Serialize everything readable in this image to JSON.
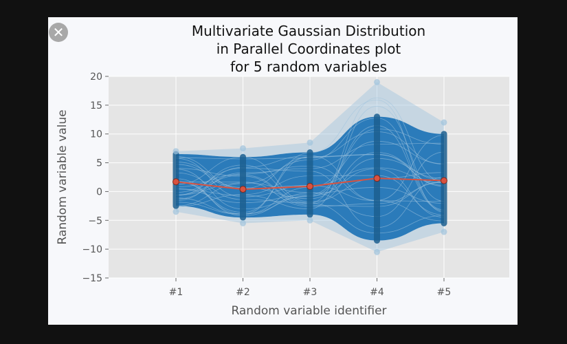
{
  "viewer": {
    "close_glyph": "✕"
  },
  "chart_data": {
    "type": "line",
    "title": "Multivariate Gaussian Distribution\nin Parallel Coordinates plot\nfor 5 random variables",
    "xlabel": "Random variable identifier",
    "ylabel": "Random variable value",
    "categories": [
      "#1",
      "#2",
      "#3",
      "#4",
      "#5"
    ],
    "ylim": [
      -15,
      20
    ],
    "yticks": [
      -15,
      -10,
      -5,
      0,
      5,
      10,
      15,
      20
    ],
    "ytick_labels": [
      "−15",
      "−10",
      "−5",
      "0",
      "5",
      "10",
      "15",
      "20"
    ],
    "grid": true,
    "series": [
      {
        "role": "samples-band",
        "color": "#2b7bba",
        "lower": [
          -3.5,
          -5.5,
          -5.0,
          -10.5,
          -7.0
        ],
        "upper": [
          7.0,
          7.5,
          8.5,
          19.0,
          12.0
        ],
        "dense_lower": [
          -2.5,
          -4.5,
          -4.0,
          -8.5,
          -5.5
        ],
        "dense_upper": [
          6.5,
          6.0,
          6.8,
          13.0,
          10.0
        ]
      },
      {
        "role": "mean",
        "color": "#d9523f",
        "values": [
          1.7,
          0.4,
          0.9,
          2.3,
          1.9
        ]
      }
    ],
    "colors": {
      "plot_bg": "#e5e5e5",
      "grid": "#ffffff",
      "band": "#2b7bba",
      "band_edge": "#9fc3dd",
      "points": "#1c5f8f",
      "mean": "#d9523f"
    }
  }
}
